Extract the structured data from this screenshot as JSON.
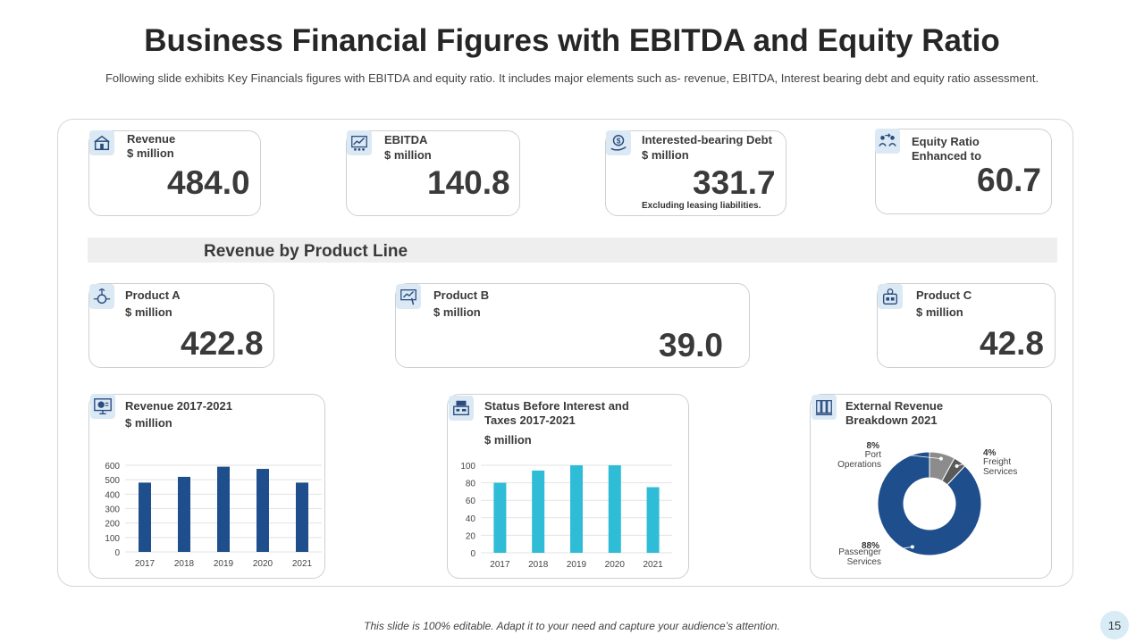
{
  "header": {
    "title": "Business Financial Figures with EBITDA and Equity Ratio",
    "subtitle": "Following slide exhibits Key Financials figures with EBITDA and equity ratio. It includes major elements such as- revenue, EBITDA, Interest bearing debt and equity ratio assessment."
  },
  "kpis": [
    {
      "label1": "Revenue",
      "label2": "$ million",
      "value": "484.0",
      "icon": "revenue-icon"
    },
    {
      "label1": "EBITDA",
      "label2": "$ million",
      "value": "140.8",
      "icon": "ebitda-icon"
    },
    {
      "label1": "Interested-bearing Debt",
      "label2": "$ million",
      "value": "331.7",
      "note": "Excluding leasing liabilities.",
      "icon": "debt-icon"
    },
    {
      "label1": "Equity Ratio",
      "label2": "Enhanced to",
      "value": "60.7",
      "icon": "equity-icon"
    }
  ],
  "section": {
    "title": "Revenue by Product Line"
  },
  "products": [
    {
      "label1": "Product A",
      "label2": "$ million",
      "value": "422.8",
      "icon": "product-a-icon"
    },
    {
      "label1": "Product B",
      "label2": "$ million",
      "value": "39.0",
      "icon": "product-b-icon"
    },
    {
      "label1": "Product C",
      "label2": "$ million",
      "value": "42.8",
      "icon": "product-c-icon"
    }
  ],
  "charts_meta": [
    {
      "title1": "Revenue 2017-2021",
      "title2": "$ million"
    },
    {
      "title1": "Status Before Interest and",
      "title1b": "Taxes 2017-2021",
      "title2": "$ million"
    },
    {
      "title1": "External Revenue",
      "title1b": "Breakdown 2021"
    }
  ],
  "chart_data": [
    {
      "type": "bar",
      "title": "Revenue 2017-2021",
      "ylabel": "$ million",
      "categories": [
        "2017",
        "2018",
        "2019",
        "2020",
        "2021"
      ],
      "values": [
        480,
        520,
        590,
        575,
        480
      ],
      "ylim": [
        0,
        600
      ],
      "yticks": [
        0,
        100,
        200,
        300,
        400,
        500,
        600
      ],
      "color": "#1f4e8c",
      "grid": true
    },
    {
      "type": "bar",
      "title": "Status Before Interest and Taxes 2017-2021",
      "ylabel": "$ million",
      "categories": [
        "2017",
        "2018",
        "2019",
        "2020",
        "2021"
      ],
      "values": [
        80,
        94,
        100,
        100,
        75
      ],
      "ylim": [
        0,
        100
      ],
      "yticks": [
        0,
        20,
        40,
        60,
        80,
        100
      ],
      "color": "#2fbcd6",
      "grid": true
    },
    {
      "type": "pie",
      "title": "External Revenue Breakdown 2021",
      "slices": [
        {
          "label": "Port Operations",
          "value": 8,
          "pct": "8%",
          "color": "#8c8c8c"
        },
        {
          "label": "Freight Services",
          "value": 4,
          "pct": "4%",
          "color": "#5a5a5a"
        },
        {
          "label": "Passenger Services",
          "value": 88,
          "pct": "88%",
          "color": "#1f4e8c"
        }
      ]
    }
  ],
  "footer": {
    "text": "This slide is 100% editable. Adapt it to your need and capture your audience’s attention.",
    "page": "15"
  }
}
